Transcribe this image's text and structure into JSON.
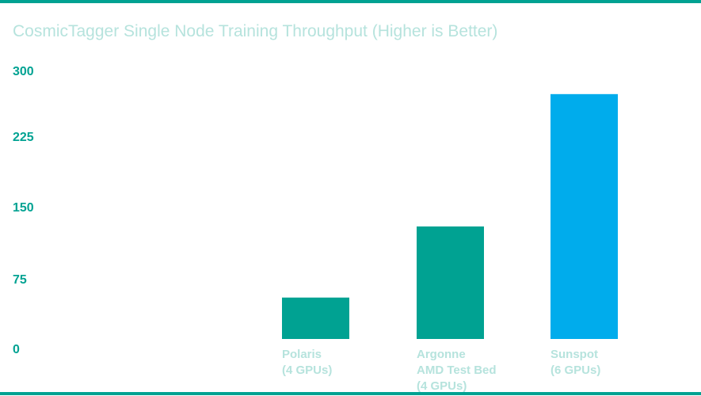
{
  "chart_data": {
    "type": "bar",
    "title": "CosmicTagger Single Node Training Throughput (Higher is Better)",
    "xlabel": "",
    "ylabel": "",
    "ylim": [
      0,
      300
    ],
    "yticks": [
      "0",
      "75",
      "150",
      "225",
      "300"
    ],
    "categories": [
      [
        "Polaris",
        "(4 GPUs)"
      ],
      [
        "Argonne",
        "AMD Test Bed",
        "(4 GPUs)"
      ],
      [
        "Sunspot",
        "(6 GPUs)"
      ]
    ],
    "values": [
      46,
      125,
      272
    ],
    "grid": false,
    "legend": "none"
  },
  "colors": {
    "accent": "#00a292",
    "highlight": "#00acec",
    "title": "#b6e3dd",
    "category_label": "#b6e3dd",
    "tick_label": "#00a292",
    "rule": "#00a292"
  }
}
